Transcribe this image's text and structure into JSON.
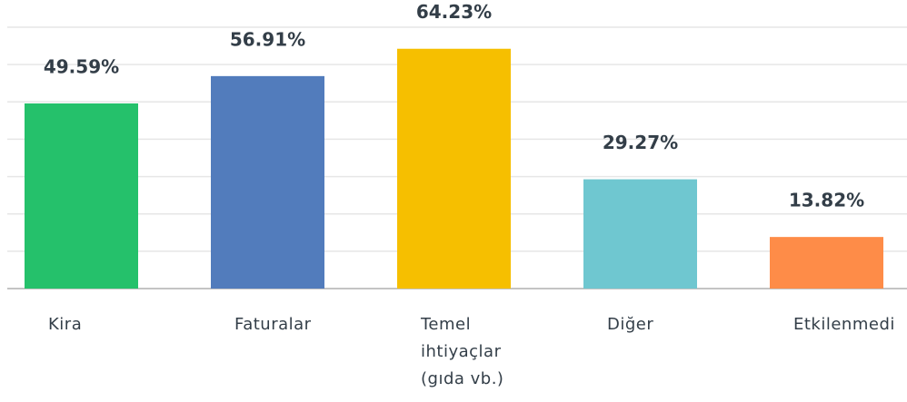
{
  "chart_data": {
    "type": "bar",
    "categories": [
      "Kira",
      "Faturalar",
      "Temel ihtiyaçlar (gıda vb.)",
      "Diğer",
      "Etkilenmedi"
    ],
    "values": [
      49.59,
      56.91,
      64.23,
      29.27,
      13.82
    ],
    "value_labels": [
      "49.59%",
      "56.91%",
      "64.23%",
      "29.27%",
      "13.82%"
    ],
    "colors": [
      "#25c16b",
      "#527cbc",
      "#f6bf00",
      "#6fc7d0",
      "#fe8c48"
    ],
    "ylim": [
      0,
      70
    ],
    "yticks": [
      0,
      10,
      20,
      30,
      40,
      50,
      60,
      70
    ],
    "grid": true
  }
}
